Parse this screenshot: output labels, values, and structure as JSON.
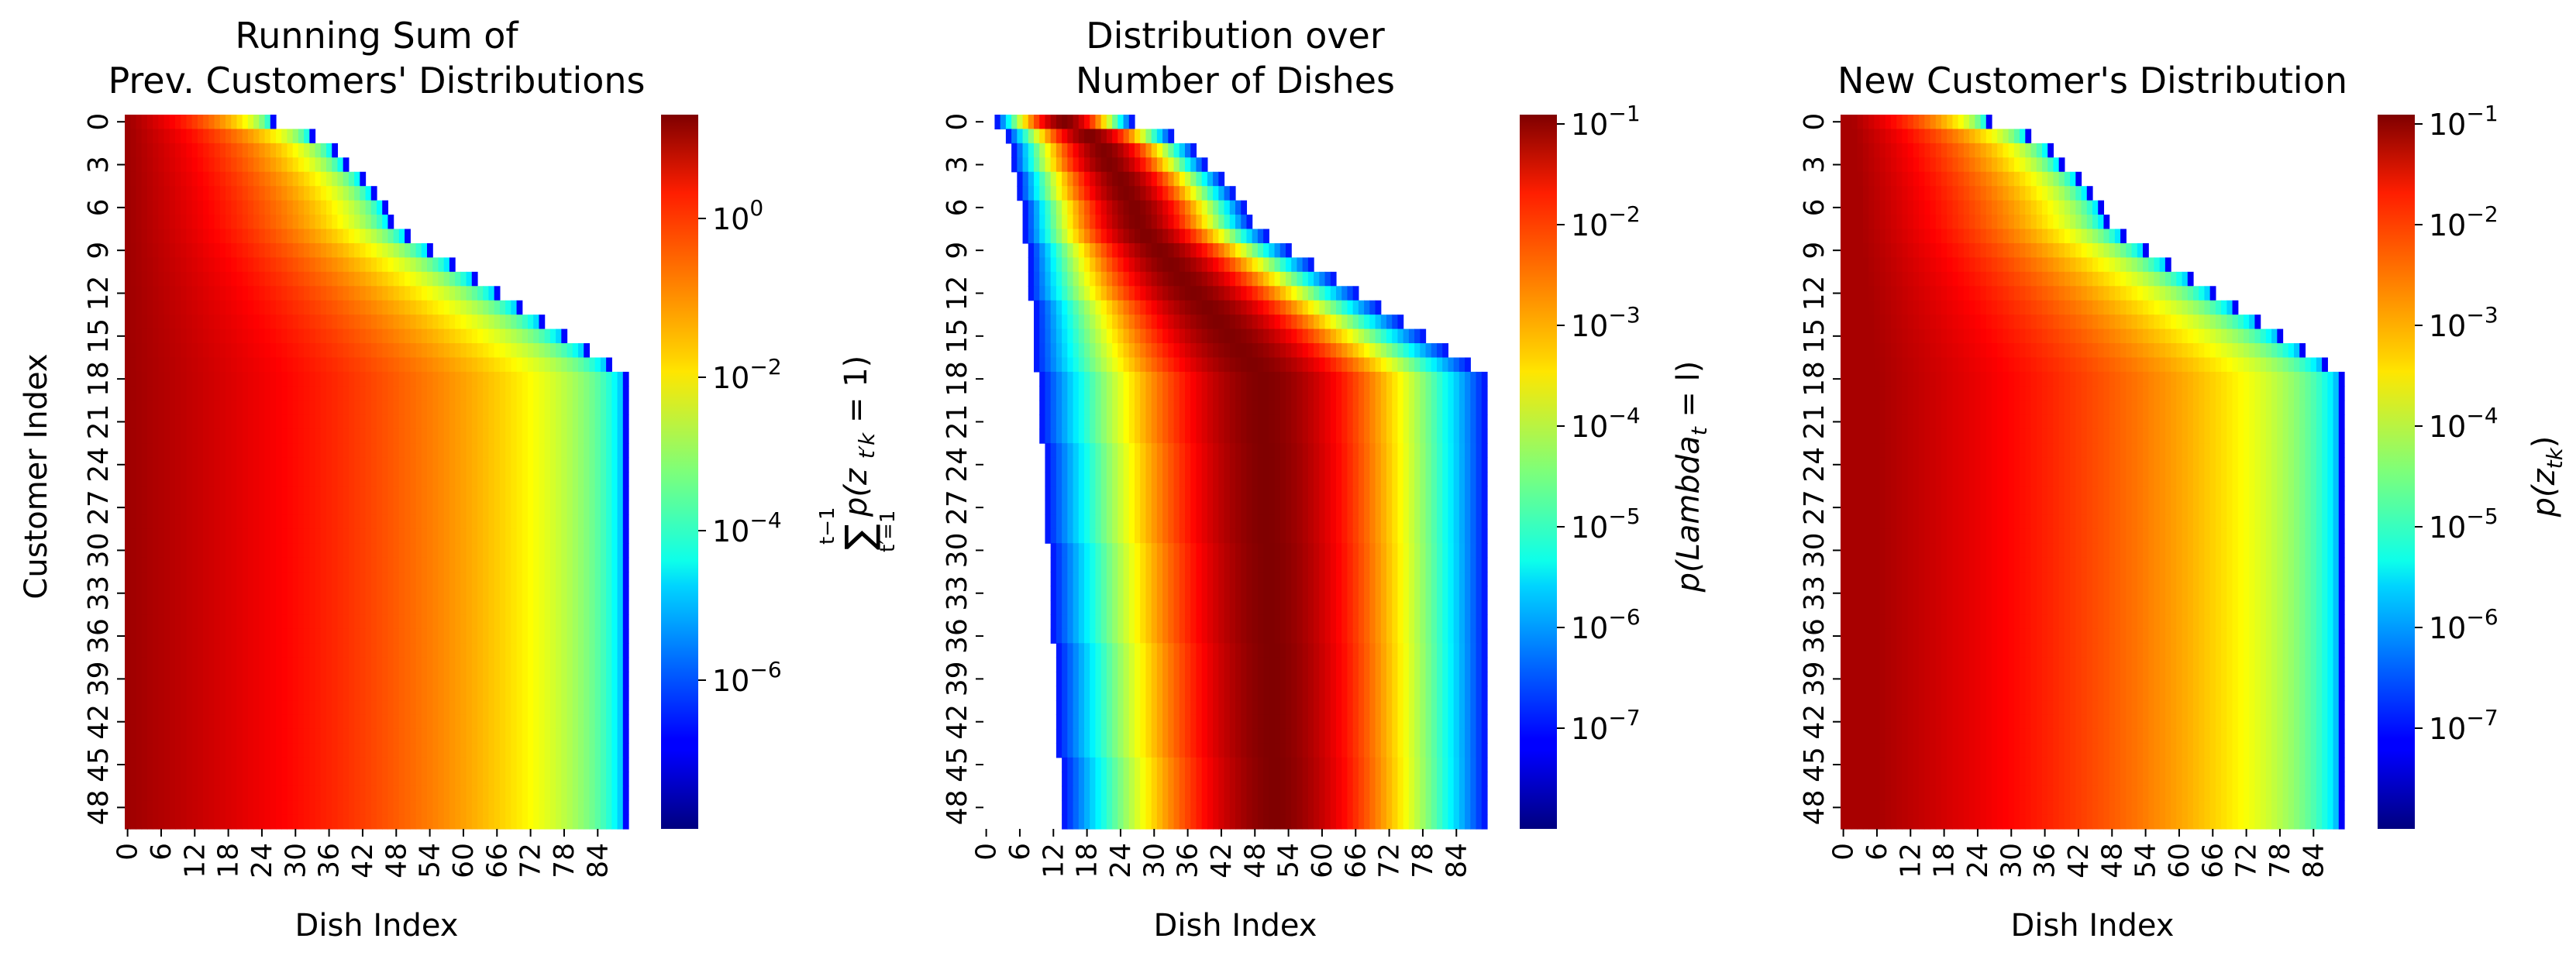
{
  "chart_data": [
    {
      "type": "heatmap",
      "title": [
        "Running Sum of",
        "Prev. Customers' Distributions"
      ],
      "xlabel": "Dish Index",
      "ylabel": "Customer Index",
      "x_tick_labels": [
        "0",
        "6",
        "12",
        "18",
        "24",
        "30",
        "36",
        "42",
        "48",
        "54",
        "60",
        "66",
        "72",
        "78",
        "84"
      ],
      "y_tick_labels": [
        "0",
        "3",
        "6",
        "9",
        "12",
        "15",
        "18",
        "21",
        "24",
        "27",
        "30",
        "33",
        "36",
        "39",
        "42",
        "45",
        "48"
      ],
      "n_rows": 50,
      "n_cols": 90,
      "shape": "running",
      "colorbar": {
        "scale": "log",
        "colormap": "jet",
        "label_lines": [
          "t−1",
          "∑",
          "t′=1",
          "p(z",
          "t′k",
          " = 1)"
        ],
        "ticks": [
          {
            "base": "10",
            "exp": "0"
          },
          {
            "base": "10",
            "exp": "−2"
          },
          {
            "base": "10",
            "exp": "−4"
          },
          {
            "base": "10",
            "exp": "−6"
          }
        ]
      }
    },
    {
      "type": "heatmap",
      "title": [
        "Distribution over",
        "Number of Dishes"
      ],
      "xlabel": "Dish Index",
      "ylabel": "",
      "x_tick_labels": [
        "0",
        "6",
        "12",
        "18",
        "24",
        "30",
        "36",
        "42",
        "48",
        "54",
        "60",
        "66",
        "72",
        "78",
        "84"
      ],
      "y_tick_labels": [
        "0",
        "3",
        "6",
        "9",
        "12",
        "15",
        "18",
        "21",
        "24",
        "27",
        "30",
        "33",
        "36",
        "39",
        "42",
        "45",
        "48"
      ],
      "n_rows": 50,
      "n_cols": 90,
      "shape": "dishes",
      "colorbar": {
        "scale": "log",
        "colormap": "jet",
        "label_main": "p(Lambda",
        "label_sub": "t",
        "label_tail": " = l)",
        "ticks": [
          {
            "base": "10",
            "exp": "−1"
          },
          {
            "base": "10",
            "exp": "−2"
          },
          {
            "base": "10",
            "exp": "−3"
          },
          {
            "base": "10",
            "exp": "−4"
          },
          {
            "base": "10",
            "exp": "−5"
          },
          {
            "base": "10",
            "exp": "−6"
          },
          {
            "base": "10",
            "exp": "−7"
          }
        ]
      }
    },
    {
      "type": "heatmap",
      "title": [
        "New Customer's Distribution"
      ],
      "xlabel": "Dish Index",
      "ylabel": "",
      "x_tick_labels": [
        "0",
        "6",
        "12",
        "18",
        "24",
        "30",
        "36",
        "42",
        "48",
        "54",
        "60",
        "66",
        "72",
        "78",
        "84"
      ],
      "y_tick_labels": [
        "0",
        "3",
        "6",
        "9",
        "12",
        "15",
        "18",
        "21",
        "24",
        "27",
        "30",
        "33",
        "36",
        "39",
        "42",
        "45",
        "48"
      ],
      "n_rows": 50,
      "n_cols": 90,
      "shape": "new",
      "colorbar": {
        "scale": "log",
        "colormap": "jet",
        "label_main": "p(z",
        "label_sub": "tk",
        "label_tail": ")",
        "ticks": [
          {
            "base": "10",
            "exp": "−1"
          },
          {
            "base": "10",
            "exp": "−2"
          },
          {
            "base": "10",
            "exp": "−3"
          },
          {
            "base": "10",
            "exp": "−4"
          },
          {
            "base": "10",
            "exp": "−5"
          },
          {
            "base": "10",
            "exp": "−6"
          },
          {
            "base": "10",
            "exp": "−7"
          }
        ]
      }
    }
  ]
}
